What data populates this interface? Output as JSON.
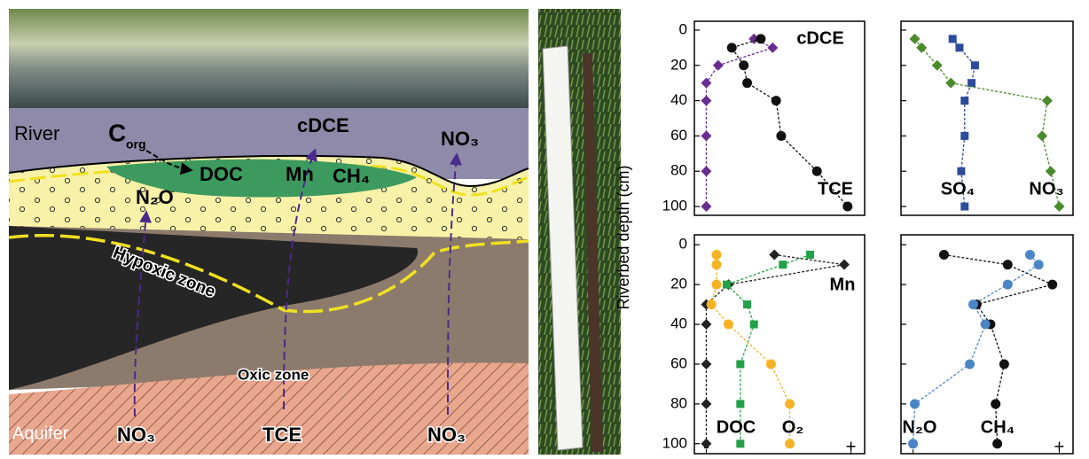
{
  "diagram": {
    "river": "River",
    "corg": {
      "main": "C",
      "sub": "org"
    },
    "cdce": "cDCE",
    "no3_top": "NO₃",
    "doc": "DOC",
    "mn": "Mn",
    "ch4": "CH₄",
    "n2o": "N₂O",
    "hypoxic": "Hypoxic zone",
    "oxic": "Oxic zone",
    "aquifer": "Aquifer",
    "no3_left": "NO₃",
    "tce": "TCE",
    "no3_right": "NO₃"
  },
  "y_label": "Riverbed depth (cm)",
  "chart_data": [
    {
      "type": "line",
      "ylim": [
        -5,
        105
      ],
      "y_inverted": true,
      "yticks": [
        0,
        20,
        40,
        60,
        80,
        100
      ],
      "show_ytick_labels": true,
      "xlim": [
        0,
        10
      ],
      "series": [
        {
          "name": "cDCE",
          "color": "#6a2c91",
          "marker": "diamond",
          "x": [
            3.5,
            4.6,
            1.4,
            0.7,
            0.7,
            0.7,
            0.7,
            0.7
          ],
          "values": [
            5,
            10,
            20,
            30,
            40,
            60,
            80,
            100
          ]
        },
        {
          "name": "TCE",
          "color": "#111111",
          "marker": "circle",
          "x": [
            3.9,
            2.2,
            2.9,
            3.1,
            4.8,
            5.1,
            7.2,
            9.0
          ],
          "values": [
            5,
            10,
            20,
            30,
            40,
            60,
            80,
            100
          ]
        }
      ]
    },
    {
      "type": "line",
      "ylim": [
        -5,
        105
      ],
      "y_inverted": true,
      "yticks": [
        0,
        20,
        40,
        60,
        80,
        100
      ],
      "show_ytick_labels": false,
      "xlim": [
        0,
        10
      ],
      "series": [
        {
          "name": "SO₄",
          "color": "#2e4b9b",
          "marker": "square",
          "x": [
            3.0,
            3.4,
            4.3,
            4.1,
            3.7,
            3.7,
            3.5,
            3.7
          ],
          "values": [
            5,
            10,
            20,
            30,
            40,
            60,
            80,
            100
          ]
        },
        {
          "name": "NO₃",
          "color": "#4a8b2c",
          "marker": "diamond",
          "x": [
            0.8,
            1.2,
            2.1,
            2.9,
            8.5,
            8.2,
            8.7,
            9.2
          ],
          "values": [
            5,
            10,
            20,
            30,
            40,
            60,
            80,
            100
          ]
        }
      ]
    },
    {
      "type": "line",
      "ylim": [
        -5,
        105
      ],
      "y_inverted": true,
      "yticks": [
        0,
        20,
        40,
        60,
        80,
        100
      ],
      "show_ytick_labels": true,
      "xlim": [
        0,
        10
      ],
      "xticks": [
        {
          "value": 0.7,
          "label": "-"
        },
        {
          "value": 9.2,
          "label": "+"
        }
      ],
      "series": [
        {
          "name": "Mn",
          "color": "#222222",
          "marker": "diamond",
          "x": [
            4.7,
            8.8,
            2.0,
            0.7,
            0.7,
            0.7,
            0.7,
            0.7
          ],
          "values": [
            5,
            10,
            20,
            30,
            40,
            60,
            80,
            100
          ]
        },
        {
          "name": "DOC",
          "color": "#22a04a",
          "marker": "square",
          "x": [
            6.8,
            5.2,
            1.9,
            3.1,
            3.5,
            2.7,
            2.7,
            2.7
          ],
          "values": [
            5,
            10,
            20,
            30,
            40,
            60,
            80,
            100
          ]
        },
        {
          "name": "O₂",
          "color": "#f5b323",
          "marker": "circle",
          "x": [
            1.3,
            1.3,
            1.3,
            1.0,
            2.0,
            4.5,
            5.6,
            5.6
          ],
          "values": [
            5,
            10,
            20,
            30,
            40,
            60,
            80,
            100
          ]
        }
      ]
    },
    {
      "type": "line",
      "ylim": [
        -5,
        105
      ],
      "y_inverted": true,
      "yticks": [
        0,
        20,
        40,
        60,
        80,
        100
      ],
      "show_ytick_labels": false,
      "xlim": [
        0,
        10
      ],
      "xticks": [
        {
          "value": 0.7,
          "label": "-"
        },
        {
          "value": 9.2,
          "label": "+"
        }
      ],
      "series": [
        {
          "name": "N₂O",
          "color": "#111111",
          "marker": "circle",
          "x": [
            2.5,
            6.2,
            8.8,
            4.4,
            5.2,
            6.0,
            5.5,
            5.6
          ],
          "values": [
            5,
            10,
            20,
            30,
            40,
            60,
            80,
            100
          ]
        },
        {
          "name": "CH₄",
          "color": "#4a86c5",
          "marker": "circle",
          "x": [
            7.5,
            8.0,
            6.2,
            4.2,
            4.9,
            4.0,
            0.8,
            0.7
          ],
          "values": [
            5,
            10,
            20,
            30,
            40,
            60,
            80,
            100
          ]
        }
      ]
    }
  ]
}
